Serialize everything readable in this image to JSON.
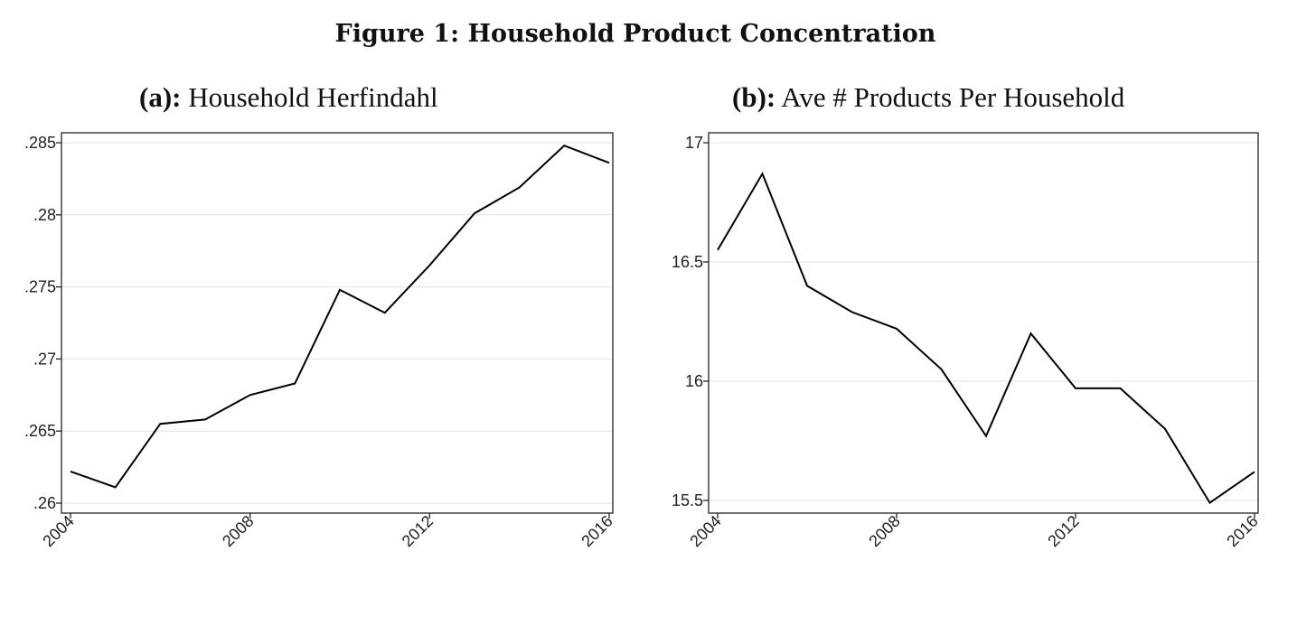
{
  "figure": {
    "title": "Figure 1: Household Product Concentration"
  },
  "panels": [
    {
      "letter": "(a):",
      "name": "Household Herfindahl"
    },
    {
      "letter": "(b):",
      "name": "Ave # Products Per Household"
    }
  ],
  "chart_data": [
    {
      "type": "line",
      "title": "(a): Household Herfindahl",
      "xlabel": "",
      "ylabel": "",
      "x": [
        2004,
        2005,
        2006,
        2007,
        2008,
        2009,
        2010,
        2011,
        2012,
        2013,
        2014,
        2015,
        2016
      ],
      "y": [
        0.2622,
        0.2611,
        0.2655,
        0.2658,
        0.2675,
        0.2683,
        0.2748,
        0.2732,
        0.2765,
        0.2801,
        0.2819,
        0.2848,
        0.2836
      ],
      "xlim": [
        2004,
        2016
      ],
      "ylim": [
        0.26,
        0.285
      ],
      "xticks": [
        2004,
        2008,
        2012,
        2016
      ],
      "xtick_labels": [
        "2004",
        "2008",
        "2012",
        "2016"
      ],
      "yticks": [
        0.26,
        0.265,
        0.27,
        0.275,
        0.28,
        0.285
      ],
      "ytick_labels": [
        ".26",
        ".265",
        ".27",
        ".275",
        ".28",
        ".285"
      ],
      "grid": "horizontal",
      "line_color": "#000000"
    },
    {
      "type": "line",
      "title": "(b): Ave # Products Per Household",
      "xlabel": "",
      "ylabel": "",
      "x": [
        2004,
        2005,
        2006,
        2007,
        2008,
        2009,
        2010,
        2011,
        2012,
        2013,
        2014,
        2015,
        2016
      ],
      "y": [
        16.55,
        16.87,
        16.4,
        16.29,
        16.22,
        16.05,
        15.77,
        16.2,
        15.97,
        15.97,
        15.8,
        15.49,
        15.62
      ],
      "xlim": [
        2004,
        2016
      ],
      "ylim": [
        15.5,
        17
      ],
      "xticks": [
        2004,
        2008,
        2012,
        2016
      ],
      "xtick_labels": [
        "2004",
        "2008",
        "2012",
        "2016"
      ],
      "yticks": [
        15.5,
        16,
        16.5,
        17
      ],
      "ytick_labels": [
        "15.5",
        "16",
        "16.5",
        "17"
      ],
      "grid": "horizontal",
      "line_color": "#000000"
    }
  ]
}
